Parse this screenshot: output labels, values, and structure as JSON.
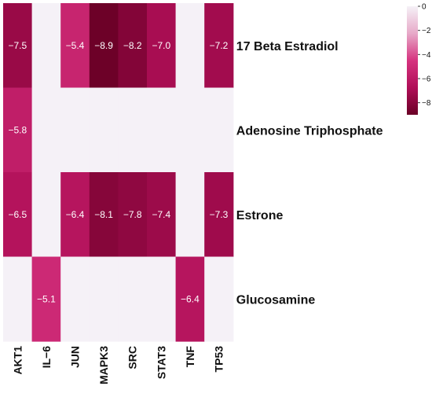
{
  "chart_data": {
    "type": "heatmap",
    "title": "",
    "xlabel": "",
    "ylabel": "",
    "columns": [
      "AKT1",
      "IL−6",
      "JUN",
      "MAPK3",
      "SRC",
      "STAT3",
      "TNF",
      "TP53"
    ],
    "rows": [
      "17 Beta Estradiol",
      "Adenosine Triphosphate",
      "Estrone",
      "Glucosamine"
    ],
    "values": [
      [
        -7.5,
        0,
        -5.4,
        -8.9,
        -8.2,
        -7.0,
        0,
        -7.2
      ],
      [
        -5.8,
        0,
        0,
        0,
        0,
        0,
        0,
        0
      ],
      [
        -6.5,
        0,
        -6.4,
        -8.1,
        -7.8,
        -7.4,
        0,
        -7.3
      ],
      [
        0,
        -5.1,
        0,
        0,
        0,
        0,
        -6.4,
        0
      ]
    ],
    "cell_labels": [
      [
        "−7.5",
        "",
        "−5.4",
        "−8.9",
        "−8.2",
        "−7.0",
        "",
        "−7.2"
      ],
      [
        "−5.8",
        "",
        "",
        "",
        "",
        "",
        "",
        ""
      ],
      [
        "−6.5",
        "",
        "−6.4",
        "−8.1",
        "−7.8",
        "−7.4",
        "",
        "−7.3"
      ],
      [
        "",
        "−5.1",
        "",
        "",
        "",
        "",
        "−6.4",
        ""
      ]
    ],
    "colorbar": {
      "min": -9,
      "max": 0,
      "ticks": [
        0,
        -2,
        -4,
        -6,
        -8
      ],
      "tick_labels": [
        "0",
        "−2",
        "−4",
        "−6",
        "−8"
      ],
      "colors": [
        "#f5f1f7",
        "#e7a9c8",
        "#d6337f",
        "#b00f58",
        "#6a0026"
      ]
    },
    "empty_color": "#f5f1f7",
    "legend": "right"
  }
}
